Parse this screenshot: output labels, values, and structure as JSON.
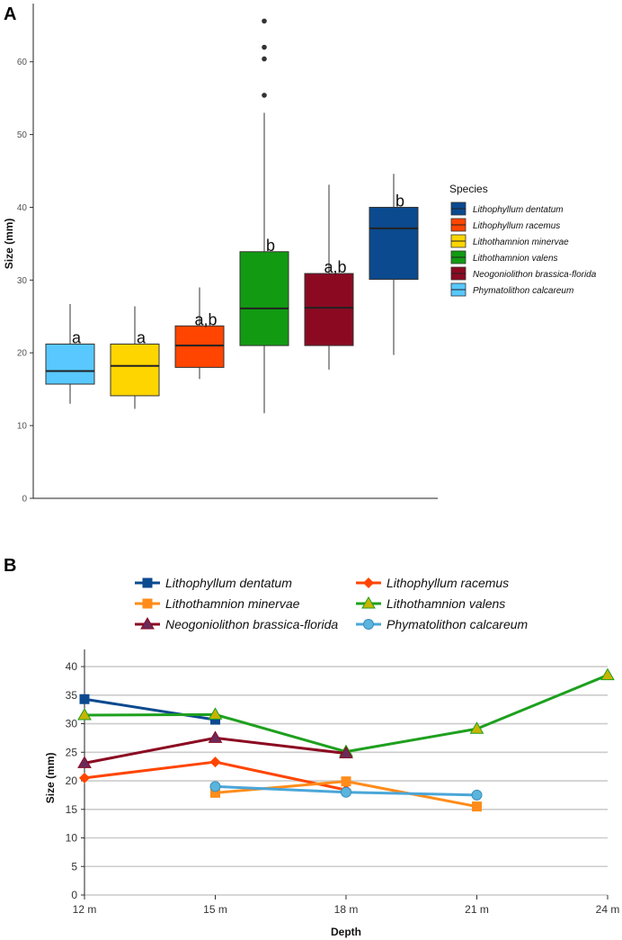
{
  "chart_data": [
    {
      "panel": "A",
      "type": "boxplot",
      "ylabel": "Size (mm)",
      "ylim": [
        0,
        68
      ],
      "yticks": [
        0,
        10,
        20,
        30,
        40,
        50,
        60
      ],
      "legend_title": "Species",
      "legend": [
        {
          "name": "Lithophyllum dentatum",
          "color": "#0b4a8f"
        },
        {
          "name": "Lithophyllum racemus",
          "color": "#ff4500"
        },
        {
          "name": "Lithothamnion minervae",
          "color": "#ffd500"
        },
        {
          "name": "Lithothamnion valens",
          "color": "#129b12"
        },
        {
          "name": "Neogoniolithon brassica-florida",
          "color": "#8b0a22"
        },
        {
          "name": "Phymatolithon calcareum",
          "color": "#58c8ff"
        }
      ],
      "boxes": [
        {
          "species": "Phymatolithon calcareum",
          "color": "#58c8ff",
          "min": 13,
          "q1": 15.7,
          "median": 17.5,
          "q3": 21.2,
          "max": 26.7,
          "outliers": [],
          "label": "a"
        },
        {
          "species": "Lithothamnion minervae",
          "color": "#ffd500",
          "min": 12.3,
          "q1": 14.1,
          "median": 18.2,
          "q3": 21.2,
          "max": 26.4,
          "outliers": [],
          "label": "a"
        },
        {
          "species": "Lithophyllum racemus",
          "color": "#ff4500",
          "min": 16.4,
          "q1": 18,
          "median": 21,
          "q3": 23.7,
          "max": 29,
          "outliers": [],
          "label": "a,b"
        },
        {
          "species": "Lithothamnion valens",
          "color": "#129b12",
          "min": 11.7,
          "q1": 21,
          "median": 26.1,
          "q3": 33.9,
          "max": 53,
          "outliers": [
            55.4,
            60.4,
            62,
            65.6
          ],
          "label": "b"
        },
        {
          "species": "Neogoniolithon brassica-florida",
          "color": "#8b0a22",
          "min": 17.7,
          "q1": 21,
          "median": 26.2,
          "q3": 30.9,
          "max": 43.1,
          "outliers": [],
          "label": "a,b"
        },
        {
          "species": "Lithophyllum dentatum",
          "color": "#0b4a8f",
          "min": 19.7,
          "q1": 30.1,
          "median": 37.1,
          "q3": 40,
          "max": 44.6,
          "outliers": [],
          "label": "b"
        }
      ]
    },
    {
      "panel": "B",
      "type": "line",
      "xlabel": "Depth",
      "ylabel": "Size (mm)",
      "categories": [
        "12 m",
        "15 m",
        "18 m",
        "21 m",
        "24 m"
      ],
      "ylim": [
        0,
        43
      ],
      "yticks": [
        0,
        5,
        10,
        15,
        20,
        25,
        30,
        35,
        40
      ],
      "series": [
        {
          "name": "Lithophyllum dentatum",
          "color": "#0b4a8f",
          "marker": "square",
          "marker_color": "#0b4a8f",
          "values": [
            34.3,
            30.7,
            null,
            null,
            null
          ]
        },
        {
          "name": "Lithophyllum racemus",
          "color": "#ff4500",
          "marker": "diamond",
          "marker_color": "#ff4500",
          "values": [
            20.5,
            23.3,
            18.4,
            null,
            null
          ]
        },
        {
          "name": "Lithothamnion minervae",
          "color": "#ff8c1a",
          "marker": "square",
          "marker_color": "#ff8c1a",
          "values": [
            null,
            17.9,
            19.9,
            15.5,
            null
          ]
        },
        {
          "name": "Lithothamnion valens",
          "color": "#1ea01e",
          "marker": "triangle",
          "marker_color": "#c8b400",
          "values": [
            31.5,
            31.6,
            25.1,
            29.1,
            38.5
          ]
        },
        {
          "name": "Neogoniolithon brassica-florida",
          "color": "#8b0a22",
          "marker": "triangle",
          "marker_color": "#6a2a5a",
          "values": [
            23.1,
            27.5,
            24.8,
            null,
            null
          ]
        },
        {
          "name": "Phymatolithon calcareum",
          "color": "#4aa6d8",
          "marker": "circle",
          "marker_color": "#5ab4dc",
          "values": [
            null,
            19,
            18,
            17.5,
            null
          ]
        }
      ]
    }
  ]
}
